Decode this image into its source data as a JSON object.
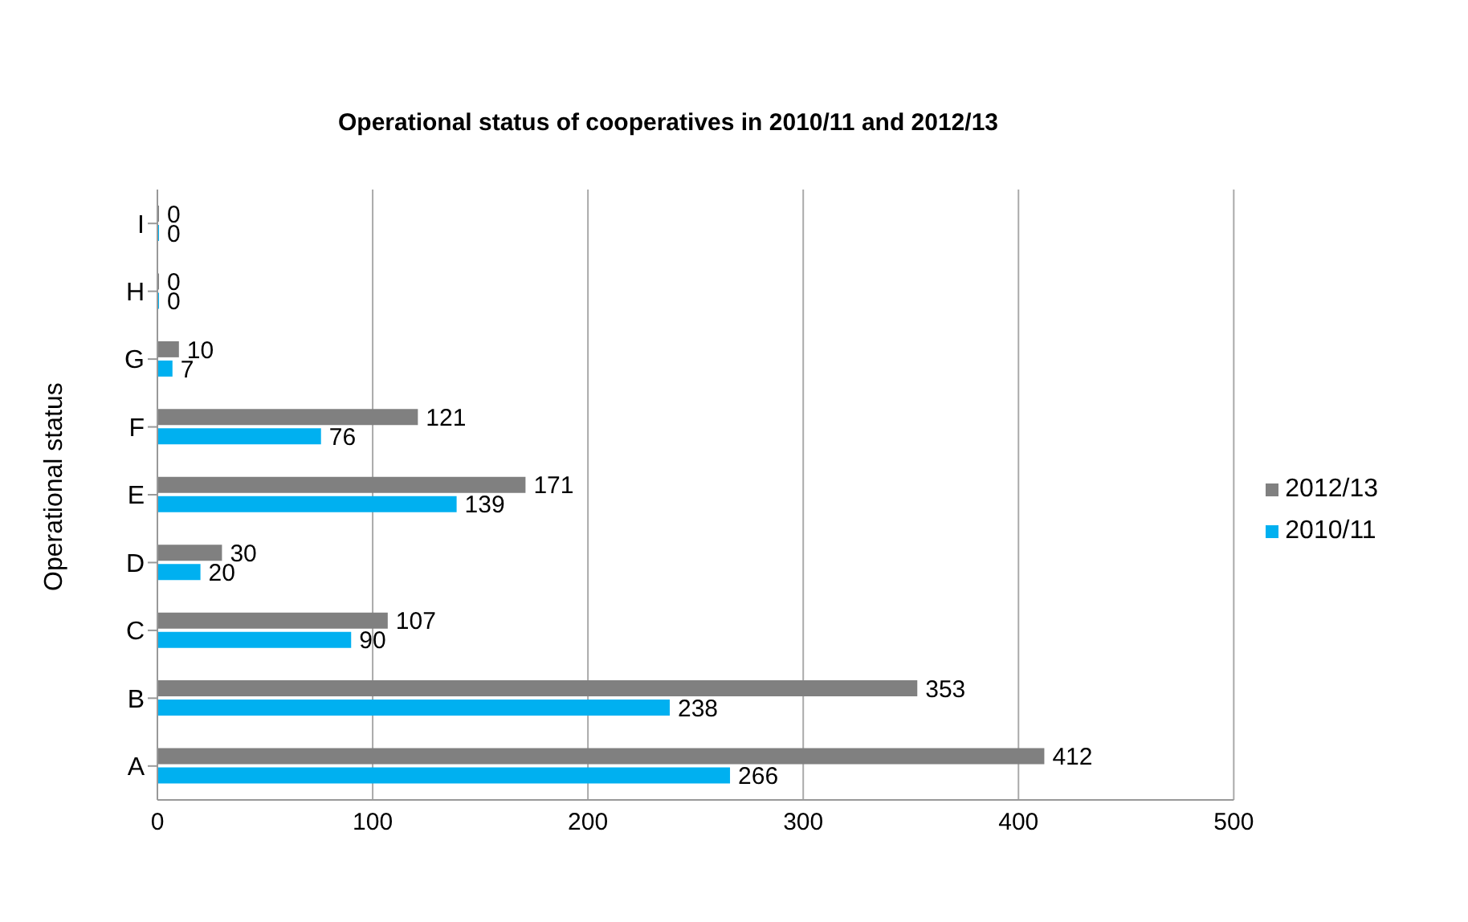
{
  "chart_data": {
    "type": "bar",
    "orientation": "horizontal",
    "title": "Operational status of cooperatives  in 2010/11 and 2012/13",
    "ylabel": "Operational status",
    "categories": [
      "I",
      "H",
      "G",
      "F",
      "E",
      "D",
      "C",
      "B",
      "A"
    ],
    "series": [
      {
        "name": "2012/13",
        "color": "#808080",
        "values": [
          0,
          0,
          10,
          121,
          171,
          30,
          107,
          353,
          412
        ]
      },
      {
        "name": "2010/11",
        "color": "#00b0f0",
        "values": [
          0,
          0,
          7,
          76,
          139,
          20,
          90,
          238,
          266
        ]
      }
    ],
    "xlim": [
      0,
      500
    ],
    "xticks": [
      0,
      100,
      200,
      300,
      400,
      500
    ],
    "grid": "x",
    "legend": "right",
    "data_labels": true
  }
}
